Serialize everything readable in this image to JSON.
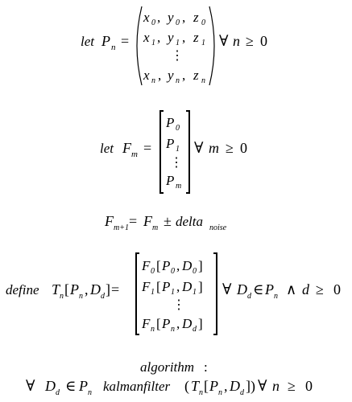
{
  "equation_1": {
    "let": "let",
    "symbol": "P",
    "symbol_sub": "n",
    "equals": "=",
    "rows": [
      [
        [
          "x",
          "0"
        ],
        [
          "y",
          "0"
        ],
        [
          "z",
          "0"
        ]
      ],
      [
        [
          "x",
          "1"
        ],
        [
          "y",
          "1"
        ],
        [
          "z",
          "1"
        ]
      ],
      [
        [
          "x",
          "n"
        ],
        [
          "y",
          "n"
        ],
        [
          "z",
          "n"
        ]
      ]
    ],
    "comma": ",",
    "dots": "⋮",
    "forall": "∀",
    "cond_var": "n",
    "cond_rel": "≥",
    "cond_val": "0"
  },
  "equation_2": {
    "let": "let",
    "symbol": "F",
    "symbol_sub": "m",
    "equals": "=",
    "rows": [
      [
        "P",
        "0"
      ],
      [
        "P",
        "1"
      ],
      [
        "P",
        "m"
      ]
    ],
    "dots": "⋮",
    "forall": "∀",
    "cond_var": "m",
    "cond_rel": "≥",
    "cond_val": "0"
  },
  "equation_3": {
    "lhs": "F",
    "lhs_sub": "m+1",
    "equals": "=",
    "rhs": "F",
    "rhs_sub": "m",
    "op": "±",
    "noise": "delta",
    "noise_sub": "noise"
  },
  "equation_4": {
    "define": "define",
    "symbol": "T",
    "symbol_sub": "n",
    "args_p": "P",
    "args_p_sub": "n",
    "args_d": "D",
    "args_d_sub": "d",
    "equals": "=",
    "rows": [
      [
        [
          "F",
          "0"
        ],
        [
          "P",
          "0"
        ],
        [
          "D",
          "0"
        ]
      ],
      [
        [
          "F",
          "1"
        ],
        [
          "P",
          "1"
        ],
        [
          "D",
          "1"
        ]
      ],
      [
        [
          "F",
          "n"
        ],
        [
          "P",
          "n"
        ],
        [
          "D",
          "d"
        ]
      ]
    ],
    "dots": "⋮",
    "forall": "∀",
    "cond_d": "D",
    "cond_d_sub": "d",
    "elem": "∈",
    "cond_p": "P",
    "cond_p_sub": "n",
    "and": "∧",
    "cond_var": "d",
    "cond_rel": "≥",
    "cond_val": "0"
  },
  "algorithm": {
    "heading": "algorithm",
    "colon": ":",
    "forall": "∀",
    "d": "D",
    "d_sub": "d",
    "elem": "∈",
    "p": "P",
    "p_sub": "n",
    "func": "kalmanfilter",
    "t": "T",
    "t_sub": "n",
    "tail_forall": "∀",
    "tail_var": "n",
    "tail_rel": "≥",
    "tail_val": "0"
  }
}
